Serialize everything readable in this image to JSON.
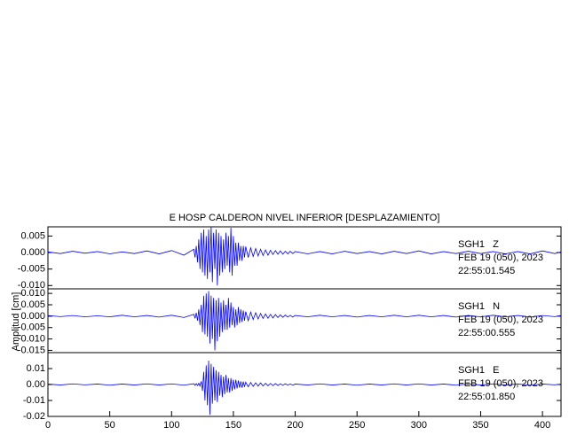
{
  "chart_data": [
    {
      "type": "line",
      "title": "E HOSP CALDERON NIVEL INFERIOR [DESPLAZAMIENTO]",
      "color": "#0000ff",
      "annotations": [
        "SGH1   Z",
        "FEB 19 (050), 2023",
        "22:55:01.545"
      ],
      "xlim": [
        0,
        415
      ],
      "ylim": [
        -0.011,
        0.0078
      ],
      "yticks": [
        0.005,
        {
          "value": 0,
          "label": "0.000"
        },
        -0.005,
        {
          "value": -0.01,
          "label": "-0.010"
        }
      ],
      "x": [
        0,
        10,
        20,
        30,
        40,
        50,
        60,
        70,
        80,
        90,
        100,
        110,
        118,
        119,
        120,
        121,
        122,
        123,
        124,
        125,
        126,
        127,
        128,
        129,
        130,
        131,
        132,
        133,
        134,
        135,
        136,
        137,
        138,
        139,
        140,
        141,
        142,
        143,
        144,
        145,
        146,
        147,
        148,
        149,
        150,
        151,
        152,
        153,
        154,
        155,
        156,
        157,
        158,
        159,
        160,
        162,
        164,
        166,
        168,
        170,
        172,
        174,
        176,
        178,
        180,
        182,
        184,
        186,
        188,
        190,
        192,
        194,
        196,
        198,
        200,
        210,
        220,
        230,
        240,
        250,
        260,
        270,
        280,
        290,
        300,
        310,
        320,
        330,
        340,
        350,
        360,
        370,
        380,
        390,
        400,
        410,
        415
      ],
      "values": [
        0.0002,
        -0.0003,
        0.0004,
        -0.0002,
        0.0003,
        -0.0004,
        0.0002,
        -0.0003,
        0.0005,
        -0.0004,
        0.0006,
        -0.0008,
        0.001,
        -0.0015,
        0.002,
        -0.003,
        0.004,
        -0.005,
        0.006,
        -0.006,
        0.007,
        -0.007,
        0.005,
        -0.008,
        0.007,
        -0.006,
        0.008,
        -0.009,
        0.006,
        -0.005,
        0.007,
        -0.01,
        0.006,
        -0.007,
        0.005,
        -0.006,
        0.004,
        -0.005,
        0.006,
        -0.004,
        0.005,
        -0.006,
        0.0075,
        -0.007,
        0.005,
        -0.004,
        0.003,
        -0.004,
        0.003,
        -0.0025,
        0.002,
        -0.0025,
        0.002,
        -0.0015,
        0.0018,
        -0.0015,
        0.0014,
        -0.0012,
        0.0012,
        -0.001,
        0.001,
        -0.0009,
        0.0008,
        -0.0008,
        0.0007,
        -0.0006,
        0.0006,
        -0.0005,
        0.0005,
        -0.0005,
        0.0004,
        -0.0004,
        0.0004,
        -0.0003,
        0.0003,
        -0.0004,
        0.0003,
        -0.0004,
        0.0004,
        -0.0003,
        0.0003,
        -0.0004,
        0.0004,
        -0.0003,
        0.0005,
        -0.0004,
        0.0003,
        -0.0003,
        0.0004,
        -0.0003,
        0.0003,
        -0.0004,
        0.0003,
        -0.0004,
        0.0005,
        -0.0003,
        0.0002
      ]
    },
    {
      "type": "line",
      "y_label": "Amplitud [cm]",
      "color": "#0000ff",
      "annotations": [
        "SGH1   N",
        "FEB 19 (050), 2023",
        "22:55:00.555"
      ],
      "xlim": [
        0,
        415
      ],
      "ylim": [
        -0.016,
        0.012
      ],
      "yticks": [
        {
          "value": 0.01,
          "label": "0.010"
        },
        0.005,
        {
          "value": 0,
          "label": "0.000"
        },
        -0.005,
        {
          "value": -0.01,
          "label": "-0.010"
        },
        -0.015
      ],
      "x": [
        0,
        10,
        20,
        30,
        40,
        50,
        60,
        70,
        80,
        90,
        100,
        110,
        118,
        119,
        120,
        121,
        122,
        123,
        124,
        125,
        126,
        127,
        128,
        129,
        130,
        131,
        132,
        133,
        134,
        135,
        136,
        137,
        138,
        139,
        140,
        141,
        142,
        143,
        144,
        145,
        146,
        147,
        148,
        149,
        150,
        151,
        152,
        153,
        154,
        155,
        156,
        157,
        158,
        159,
        160,
        162,
        164,
        166,
        168,
        170,
        172,
        174,
        176,
        178,
        180,
        182,
        184,
        186,
        188,
        190,
        192,
        194,
        196,
        198,
        200,
        210,
        220,
        230,
        240,
        250,
        260,
        270,
        280,
        290,
        300,
        310,
        320,
        330,
        340,
        350,
        360,
        370,
        380,
        390,
        400,
        410,
        415
      ],
      "values": [
        0.0003,
        -0.0002,
        0.0003,
        -0.0003,
        0.0002,
        -0.0003,
        0.0004,
        -0.0003,
        0.0003,
        -0.0004,
        0.0004,
        -0.0006,
        0.0008,
        -0.001,
        0.0015,
        -0.002,
        0.003,
        -0.004,
        0.005,
        -0.007,
        0.009,
        -0.008,
        0.01,
        -0.009,
        0.011,
        -0.012,
        0.009,
        -0.01,
        0.008,
        -0.015,
        0.007,
        -0.011,
        0.008,
        -0.009,
        0.006,
        -0.007,
        0.007,
        -0.006,
        0.005,
        -0.006,
        0.008,
        -0.005,
        0.006,
        -0.004,
        0.004,
        -0.005,
        0.003,
        -0.004,
        0.004,
        -0.003,
        0.003,
        -0.0025,
        0.0025,
        -0.002,
        0.002,
        -0.002,
        0.0018,
        -0.0015,
        0.0015,
        -0.0012,
        0.0012,
        -0.001,
        0.001,
        -0.0009,
        0.0008,
        -0.0008,
        0.0007,
        -0.0006,
        0.0006,
        -0.0005,
        0.0005,
        -0.0004,
        0.0004,
        -0.0004,
        0.0003,
        -0.0003,
        0.0004,
        -0.0003,
        0.0003,
        -0.0004,
        0.0003,
        -0.0003,
        0.0004,
        -0.0003,
        0.0004,
        -0.0003,
        0.0003,
        -0.0004,
        0.0003,
        -0.0003,
        0.0004,
        -0.0003,
        0.0003,
        -0.0004,
        0.0003,
        -0.0002,
        0.0003
      ]
    },
    {
      "type": "line",
      "color": "#0000ff",
      "annotations": [
        "SGH1   E",
        "FEB 19 (050), 2023",
        "22:55:01.850"
      ],
      "xlim": [
        0,
        415
      ],
      "ylim": [
        -0.02,
        0.02
      ],
      "xticks": [
        0,
        50,
        100,
        150,
        200,
        250,
        300,
        350,
        400
      ],
      "yticks": [
        0.01,
        {
          "value": 0,
          "label": "0.00"
        },
        -0.01,
        -0.02
      ],
      "x": [
        0,
        10,
        20,
        30,
        40,
        50,
        60,
        70,
        80,
        90,
        100,
        110,
        118,
        119,
        120,
        121,
        122,
        123,
        124,
        125,
        126,
        127,
        128,
        129,
        130,
        131,
        132,
        133,
        134,
        135,
        136,
        137,
        138,
        139,
        140,
        141,
        142,
        143,
        144,
        145,
        146,
        147,
        148,
        149,
        150,
        151,
        152,
        153,
        154,
        155,
        156,
        157,
        158,
        159,
        160,
        162,
        164,
        166,
        168,
        170,
        172,
        174,
        176,
        178,
        180,
        182,
        184,
        186,
        188,
        190,
        192,
        194,
        196,
        198,
        200,
        210,
        220,
        230,
        240,
        250,
        260,
        270,
        280,
        290,
        300,
        310,
        320,
        330,
        340,
        350,
        360,
        370,
        380,
        390,
        400,
        410,
        415
      ],
      "values": [
        0.0003,
        -0.0003,
        0.0004,
        -0.0002,
        0.0003,
        -0.0004,
        0.0003,
        -0.0003,
        0.0004,
        -0.0003,
        0.0004,
        -0.0004,
        0.0005,
        -0.0005,
        0.0006,
        -0.0006,
        0.0008,
        -0.001,
        0.002,
        -0.004,
        0.008,
        -0.01,
        0.012,
        -0.013,
        0.015,
        -0.019,
        0.013,
        -0.012,
        0.011,
        -0.01,
        0.009,
        -0.011,
        0.008,
        -0.007,
        0.006,
        -0.008,
        0.005,
        -0.006,
        0.006,
        -0.005,
        0.004,
        -0.005,
        0.004,
        -0.004,
        0.003,
        -0.003,
        0.003,
        -0.0025,
        0.0025,
        -0.002,
        0.002,
        -0.002,
        0.0018,
        -0.0015,
        0.0015,
        -0.0014,
        0.0013,
        -0.0012,
        0.0011,
        -0.001,
        0.001,
        -0.0009,
        0.0008,
        -0.0008,
        0.0007,
        -0.0007,
        0.0006,
        -0.0006,
        0.0005,
        -0.0005,
        0.0005,
        -0.0004,
        0.0004,
        -0.0004,
        0.0003,
        -0.0003,
        0.0004,
        -0.0003,
        0.0003,
        -0.0004,
        0.0003,
        -0.0003,
        0.0004,
        -0.0003,
        0.0004,
        -0.0003,
        0.0003,
        -0.0004,
        0.0003,
        -0.0003,
        0.0004,
        -0.0003,
        0.0003,
        -0.0004,
        0.0003,
        -0.0002,
        0.0003
      ]
    }
  ]
}
